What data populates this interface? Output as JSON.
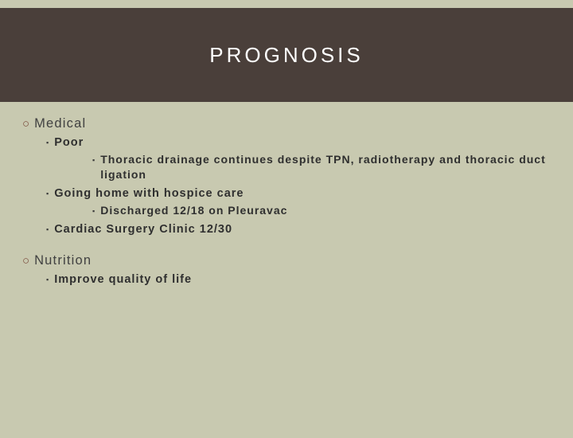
{
  "colors": {
    "background": "#c8c9b0",
    "header_band": "#4a3f3a",
    "title_text": "#ffffff",
    "l1_bullet": "#7a4a3a",
    "l1_text": "#414141",
    "body_text": "#2f2f2f"
  },
  "typography": {
    "title_fontsize": 26,
    "title_letterspacing": 4,
    "l1_fontsize": 16.5,
    "l2_fontsize": 14.5,
    "l3_fontsize": 14
  },
  "title": "PROGNOSIS",
  "sections": [
    {
      "label": "Medical",
      "items": [
        {
          "label": "Poor",
          "sub": [
            "Thoracic drainage continues despite TPN, radiotherapy and thoracic duct ligation"
          ]
        },
        {
          "label": "Going home with hospice care",
          "sub": [
            "Discharged 12/18 on Pleuravac"
          ]
        },
        {
          "label": "Cardiac Surgery Clinic 12/30",
          "sub": []
        }
      ]
    },
    {
      "label": "Nutrition",
      "items": [
        {
          "label": "Improve quality of life",
          "sub": []
        }
      ]
    }
  ]
}
